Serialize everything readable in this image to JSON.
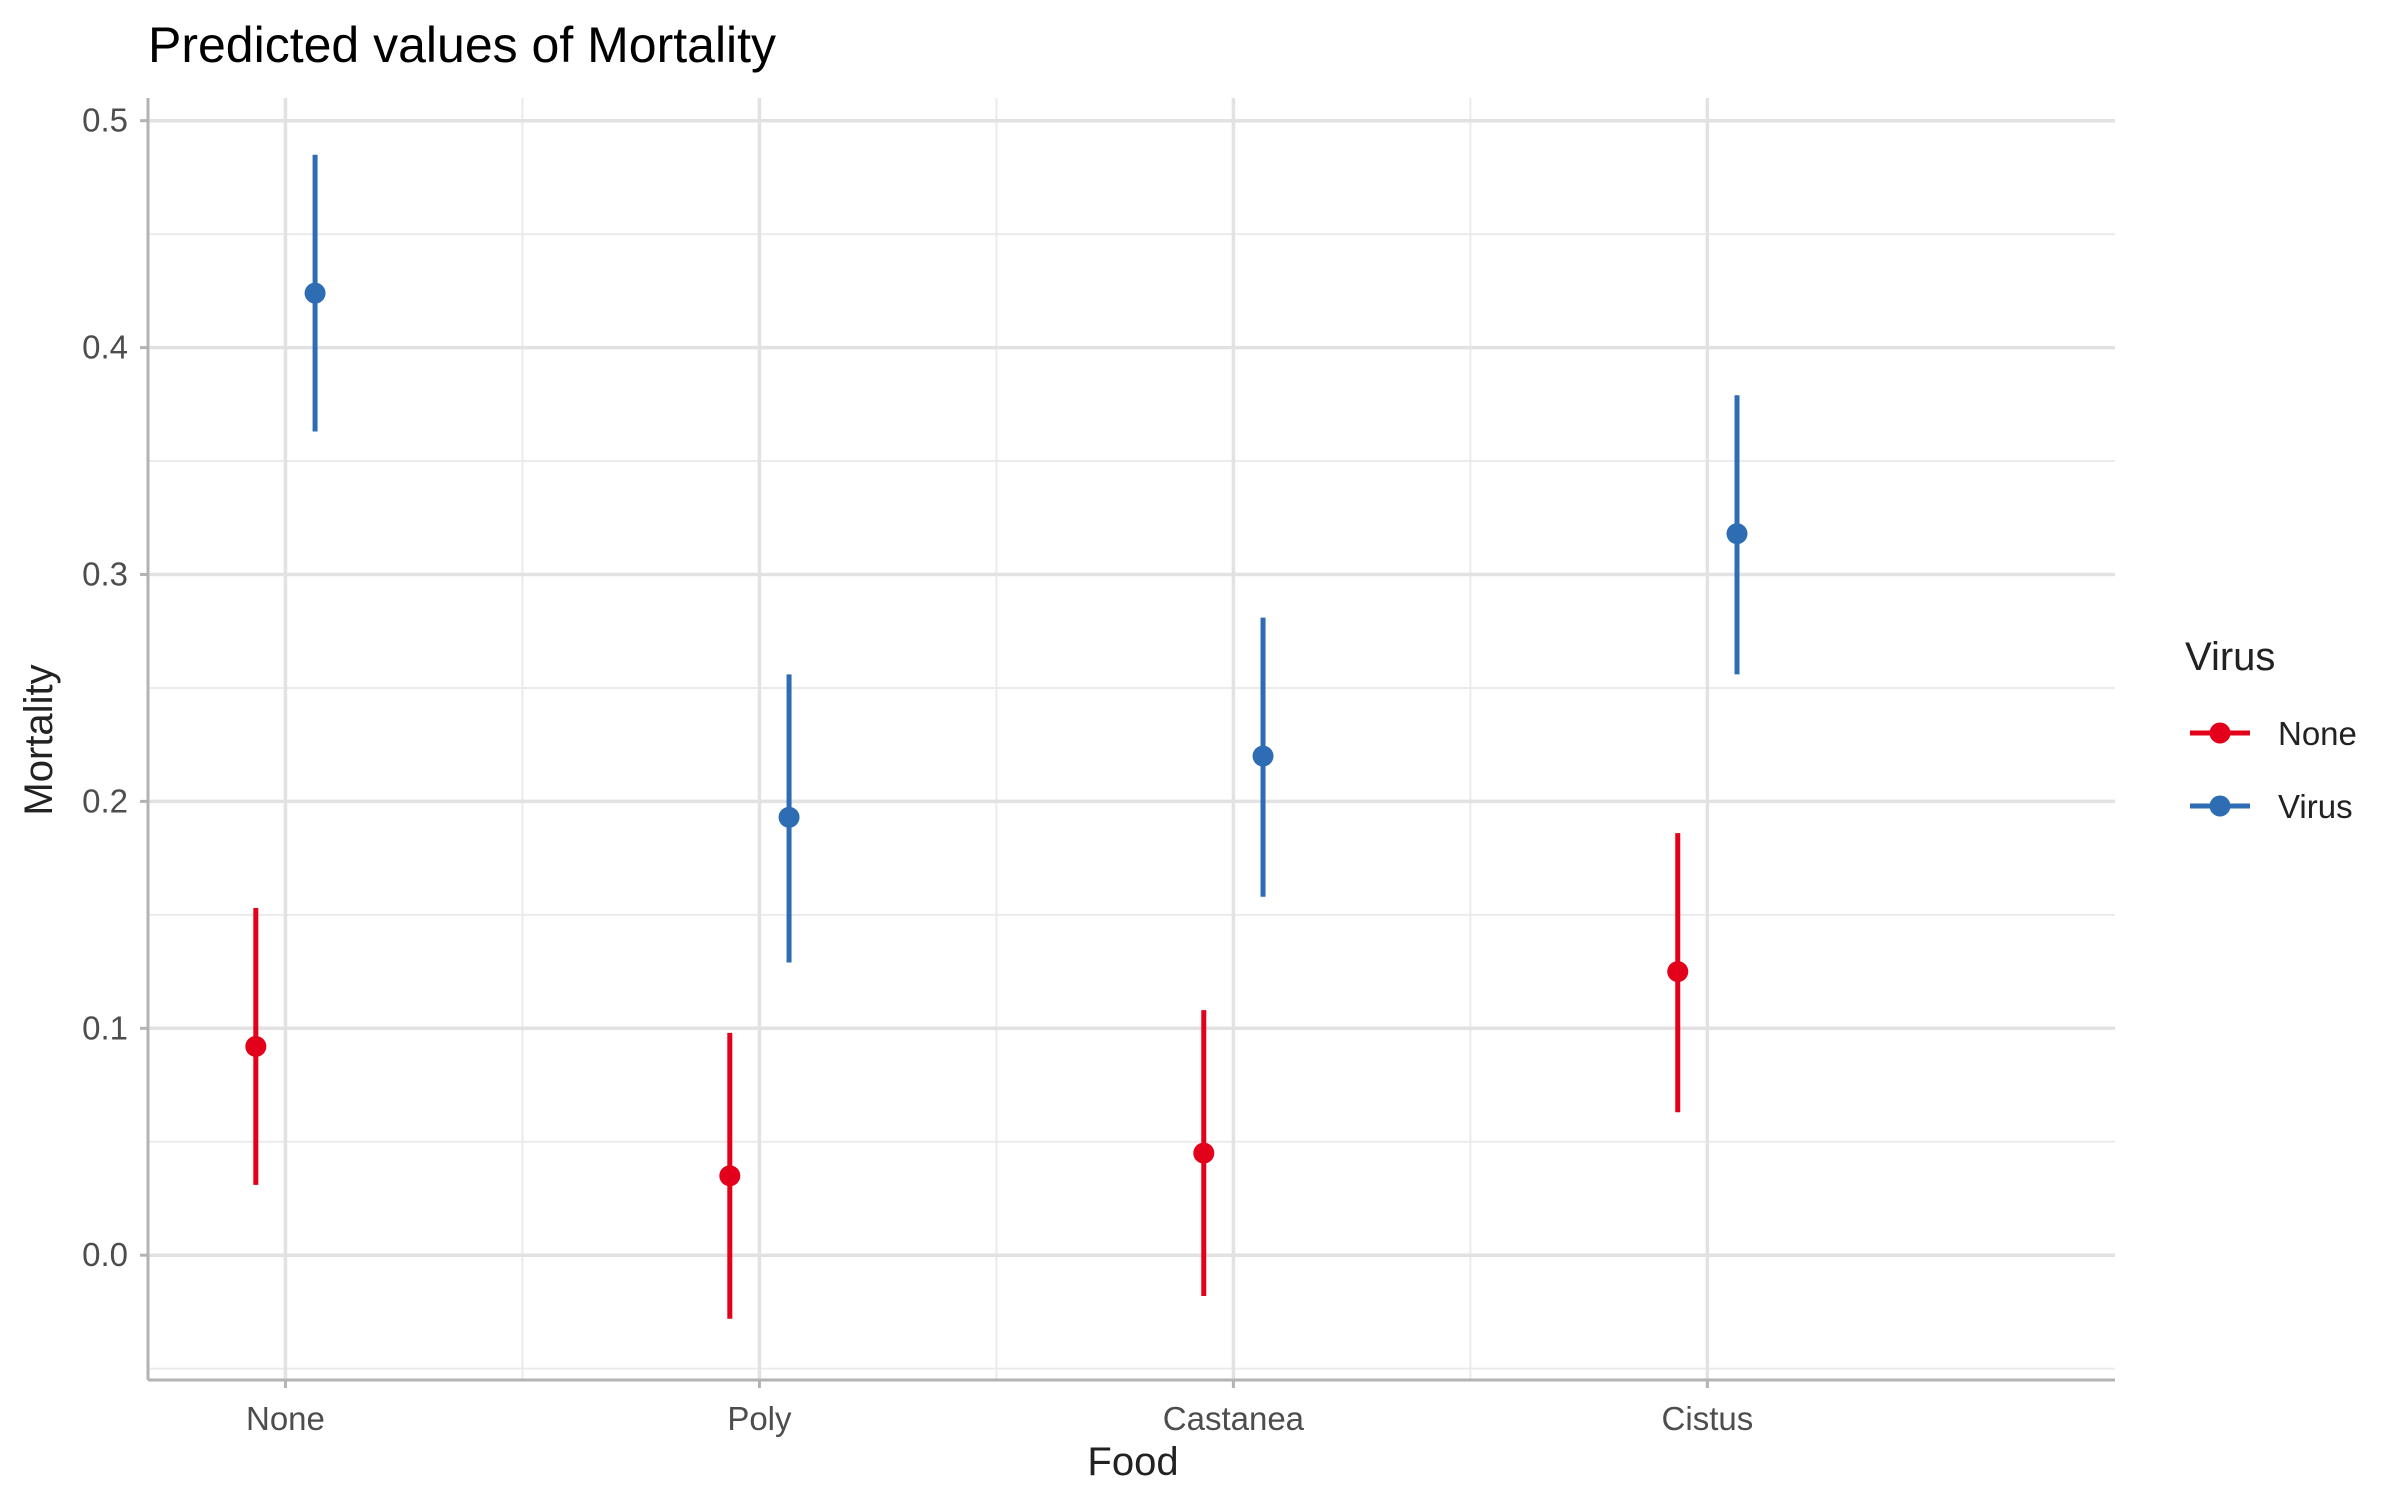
{
  "chart_data": {
    "type": "scatter",
    "title": "Predicted values of Mortality",
    "xlabel": "Food",
    "ylabel": "Mortality",
    "categories": [
      "None",
      "Poly",
      "Castanea",
      "Cistus"
    ],
    "ylim": [
      -0.055,
      0.51
    ],
    "yticks": [
      0.0,
      0.1,
      0.2,
      0.3,
      0.4,
      0.5
    ],
    "ytick_labels": [
      "0.0",
      "0.1",
      "0.2",
      "0.3",
      "0.4",
      "0.5"
    ],
    "grid": true,
    "legend": {
      "title": "Virus",
      "position": "right"
    },
    "series": [
      {
        "name": "None",
        "color": "#E2001A",
        "values": [
          0.092,
          0.035,
          0.045,
          0.125
        ],
        "lower": [
          0.031,
          -0.028,
          -0.018,
          0.063
        ],
        "upper": [
          0.153,
          0.098,
          0.108,
          0.186
        ]
      },
      {
        "name": "Virus",
        "color": "#2E6DB4",
        "values": [
          0.424,
          0.193,
          0.22,
          0.318
        ],
        "lower": [
          0.363,
          0.129,
          0.158,
          0.256
        ],
        "upper": [
          0.485,
          0.256,
          0.281,
          0.379
        ]
      }
    ]
  }
}
